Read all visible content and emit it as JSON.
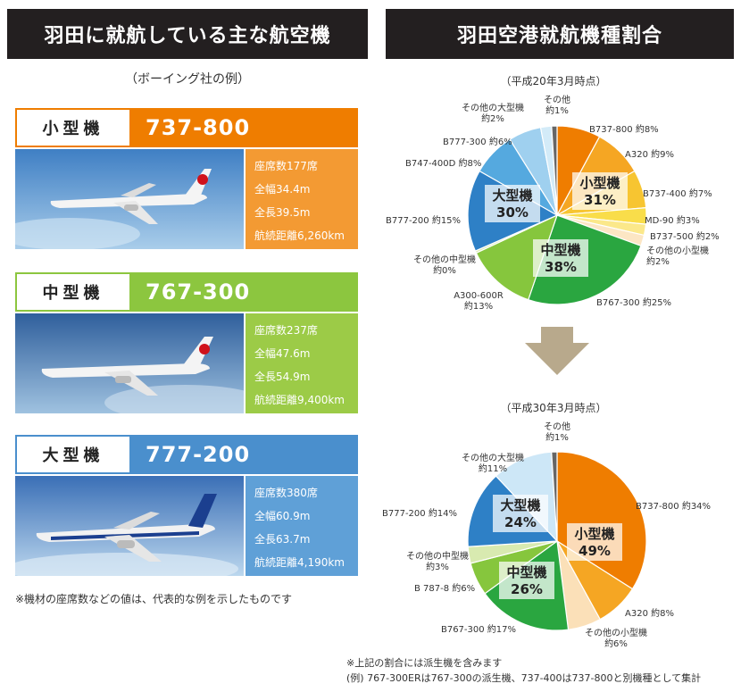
{
  "left": {
    "title": "羽田に就航している主な航空機",
    "subtitle": "（ボーイング社の例）",
    "cards": [
      {
        "category": "小型機",
        "model": "737-800",
        "specs": [
          "座席数177席",
          "全幅34.4m",
          "全長39.5m",
          "航続距離6,260km"
        ]
      },
      {
        "category": "中型機",
        "model": "767-300",
        "specs": [
          "座席数237席",
          "全幅47.6m",
          "全長54.9m",
          "航続距離9,400km"
        ]
      },
      {
        "category": "大型機",
        "model": "777-200",
        "specs": [
          "座席数380席",
          "全幅60.9m",
          "全長63.7m",
          "航続距離4,190km"
        ]
      }
    ],
    "note": "※機材の座席数などの値は、代表的な例を示したものです"
  },
  "right": {
    "title": "羽田空港就航機種割合",
    "arrow_color": "#b8a98c",
    "notes": [
      "※上記の割合には派生機を含みます",
      "(例) 767-300ERは767-300の派生機、737-400は737-800と別機種として集計"
    ]
  },
  "chart_data": [
    {
      "type": "pie",
      "title": "（平成20年3月時点）",
      "slices": [
        {
          "label": "B737-800 約8%",
          "value": 8,
          "color": "#ef7d00"
        },
        {
          "label": "A320 約9%",
          "value": 9,
          "color": "#f5a623"
        },
        {
          "label": "B737-400 約7%",
          "value": 7,
          "color": "#f7c531"
        },
        {
          "label": "MD-90 約3%",
          "value": 3,
          "color": "#f9dd4a"
        },
        {
          "label": "B737-500 約2%",
          "value": 2,
          "color": "#fbe88a"
        },
        {
          "label": "その他の小型機\n約2%",
          "value": 2,
          "color": "#fce6c4"
        },
        {
          "label": "B767-300 約25%",
          "value": 25,
          "color": "#2aa640"
        },
        {
          "label": "A300-600R\n約13%",
          "value": 13,
          "color": "#86c63d"
        },
        {
          "label": "その他の中型機\n約0%",
          "value": 0.4,
          "color": "#d8eab0"
        },
        {
          "label": "B777-200 約15%",
          "value": 15,
          "color": "#2e80c6"
        },
        {
          "label": "B747-400D 約8%",
          "value": 8,
          "color": "#55a9df"
        },
        {
          "label": "B777-300 約6%",
          "value": 6,
          "color": "#9fd0ef"
        },
        {
          "label": "その他の大型機\n約2%",
          "value": 2,
          "color": "#d3ebf8"
        },
        {
          "label": "その他\n約1%",
          "value": 1,
          "color": "#666666"
        }
      ],
      "groups": [
        {
          "name": "小型機",
          "value": "31%"
        },
        {
          "name": "中型機",
          "value": "38%"
        },
        {
          "name": "大型機",
          "value": "30%"
        }
      ]
    },
    {
      "type": "pie",
      "title": "（平成30年3月時点）",
      "slices": [
        {
          "label": "B737-800 約34%",
          "value": 34,
          "color": "#ef7d00"
        },
        {
          "label": "A320 約8%",
          "value": 8,
          "color": "#f5a623"
        },
        {
          "label": "その他の小型機\n約6%",
          "value": 6,
          "color": "#fbe0b8"
        },
        {
          "label": "B767-300 約17%",
          "value": 17,
          "color": "#2aa640"
        },
        {
          "label": "B 787-8 約6%",
          "value": 6,
          "color": "#86c63d"
        },
        {
          "label": "その他の中型機\n約3%",
          "value": 3,
          "color": "#d8eab0"
        },
        {
          "label": "B777-200 約14%",
          "value": 14,
          "color": "#2e80c6"
        },
        {
          "label": "その他の大型機\n約11%",
          "value": 11,
          "color": "#cde7f7"
        },
        {
          "label": "その他\n約1%",
          "value": 1,
          "color": "#666666"
        }
      ],
      "groups": [
        {
          "name": "小型機",
          "value": "49%"
        },
        {
          "name": "中型機",
          "value": "26%"
        },
        {
          "name": "大型機",
          "value": "24%"
        }
      ]
    }
  ]
}
